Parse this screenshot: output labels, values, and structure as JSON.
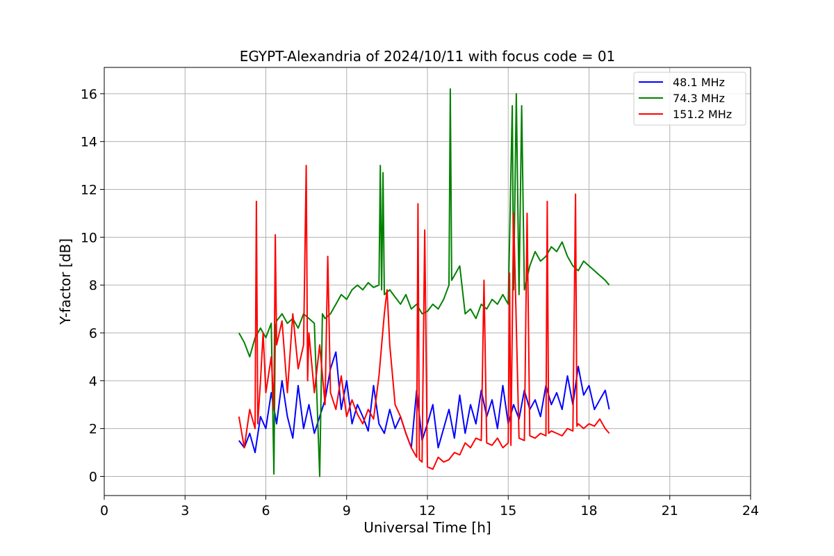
{
  "chart_data": {
    "type": "line",
    "title": "EGYPT-Alexandria of 2024/10/11 with focus code = 01",
    "xlabel": "Universal Time [h]",
    "ylabel": "Y-factor [dB]",
    "xlim": [
      0,
      24
    ],
    "ylim": [
      -0.8,
      17.1
    ],
    "xticks": [
      0,
      3,
      6,
      9,
      12,
      15,
      18,
      21,
      24
    ],
    "yticks": [
      0,
      2,
      4,
      6,
      8,
      10,
      12,
      14,
      16
    ],
    "grid": true,
    "legend_position": "top-right",
    "series": [
      {
        "name": "  48.1 MHz",
        "color": "#0000ff",
        "x": [
          5.0,
          5.2,
          5.4,
          5.6,
          5.8,
          6.0,
          6.2,
          6.4,
          6.6,
          6.8,
          7.0,
          7.2,
          7.4,
          7.6,
          7.8,
          8.0,
          8.2,
          8.4,
          8.6,
          8.8,
          9.0,
          9.2,
          9.4,
          9.6,
          9.8,
          10.0,
          10.2,
          10.4,
          10.6,
          10.8,
          11.0,
          11.2,
          11.4,
          11.6,
          11.8,
          12.0,
          12.2,
          12.4,
          12.6,
          12.8,
          13.0,
          13.2,
          13.4,
          13.6,
          13.8,
          14.0,
          14.2,
          14.4,
          14.6,
          14.8,
          15.0,
          15.2,
          15.4,
          15.6,
          15.8,
          16.0,
          16.2,
          16.4,
          16.6,
          16.8,
          17.0,
          17.2,
          17.4,
          17.6,
          17.8,
          18.0,
          18.2,
          18.4,
          18.6,
          18.75
        ],
        "y": [
          1.5,
          1.2,
          1.8,
          1.0,
          2.5,
          2.0,
          3.5,
          2.2,
          4.0,
          2.5,
          1.6,
          3.8,
          2.0,
          3.0,
          1.8,
          2.5,
          3.2,
          4.5,
          5.2,
          2.8,
          4.0,
          2.2,
          3.0,
          2.5,
          1.9,
          3.8,
          2.2,
          1.8,
          2.8,
          2.0,
          2.5,
          1.8,
          1.2,
          3.6,
          1.5,
          2.2,
          3.0,
          1.2,
          2.0,
          2.8,
          1.6,
          3.4,
          1.8,
          3.0,
          2.2,
          3.6,
          2.5,
          3.2,
          2.0,
          3.8,
          2.2,
          3.0,
          2.4,
          3.6,
          2.8,
          3.2,
          2.5,
          3.8,
          3.0,
          3.5,
          2.8,
          4.2,
          3.0,
          4.6,
          3.4,
          3.8,
          2.8,
          3.2,
          3.6,
          2.8
        ]
      },
      {
        "name": "  74.3 MHz",
        "color": "#008000",
        "x": [
          5.0,
          5.2,
          5.4,
          5.6,
          5.8,
          6.0,
          6.2,
          6.3,
          6.35,
          6.4,
          6.6,
          6.8,
          7.0,
          7.2,
          7.4,
          7.6,
          7.8,
          8.0,
          8.1,
          8.2,
          8.4,
          8.6,
          8.8,
          9.0,
          9.2,
          9.4,
          9.6,
          9.8,
          10.0,
          10.2,
          10.25,
          10.3,
          10.35,
          10.4,
          10.6,
          10.8,
          11.0,
          11.2,
          11.4,
          11.6,
          11.8,
          12.0,
          12.2,
          12.4,
          12.6,
          12.8,
          12.85,
          12.9,
          13.0,
          13.2,
          13.4,
          13.6,
          13.8,
          14.0,
          14.2,
          14.4,
          14.6,
          14.8,
          15.0,
          15.15,
          15.2,
          15.3,
          15.4,
          15.5,
          15.6,
          15.8,
          16.0,
          16.2,
          16.4,
          16.6,
          16.8,
          17.0,
          17.2,
          17.4,
          17.6,
          17.8,
          18.0,
          18.2,
          18.4,
          18.6,
          18.75
        ],
        "y": [
          6.0,
          5.6,
          5.0,
          5.8,
          6.2,
          5.8,
          6.4,
          0.1,
          6.2,
          6.5,
          6.8,
          6.4,
          6.6,
          6.2,
          6.8,
          6.6,
          6.4,
          0.0,
          6.8,
          6.6,
          6.8,
          7.2,
          7.6,
          7.4,
          7.8,
          8.0,
          7.8,
          8.1,
          7.9,
          8.0,
          13.0,
          7.8,
          12.7,
          7.6,
          7.8,
          7.5,
          7.2,
          7.6,
          7.0,
          7.2,
          6.8,
          6.9,
          7.2,
          7.0,
          7.4,
          8.0,
          16.2,
          8.2,
          8.4,
          8.8,
          6.8,
          7.0,
          6.6,
          7.2,
          7.0,
          7.4,
          7.2,
          7.6,
          7.2,
          15.5,
          7.8,
          16.0,
          7.6,
          15.5,
          7.8,
          8.8,
          9.4,
          9.0,
          9.2,
          9.6,
          9.4,
          9.8,
          9.2,
          8.8,
          8.6,
          9.0,
          8.8,
          8.6,
          8.4,
          8.2,
          8.0
        ]
      },
      {
        "name": "151.2 MHz",
        "color": "#ff0000",
        "x": [
          5.0,
          5.2,
          5.4,
          5.6,
          5.65,
          5.7,
          5.8,
          5.9,
          6.0,
          6.2,
          6.3,
          6.35,
          6.4,
          6.6,
          6.8,
          7.0,
          7.2,
          7.4,
          7.5,
          7.55,
          7.6,
          7.8,
          8.0,
          8.2,
          8.3,
          8.4,
          8.6,
          8.8,
          9.0,
          9.2,
          9.4,
          9.6,
          9.8,
          10.0,
          10.2,
          10.4,
          10.5,
          10.6,
          10.8,
          11.0,
          11.2,
          11.4,
          11.6,
          11.65,
          11.7,
          11.8,
          11.9,
          12.0,
          12.2,
          12.4,
          12.6,
          12.8,
          13.0,
          13.2,
          13.4,
          13.6,
          13.8,
          14.0,
          14.1,
          14.2,
          14.4,
          14.6,
          14.8,
          15.0,
          15.05,
          15.1,
          15.2,
          15.4,
          15.6,
          15.7,
          15.8,
          16.0,
          16.2,
          16.4,
          16.45,
          16.5,
          16.6,
          16.8,
          17.0,
          17.2,
          17.4,
          17.5,
          17.55,
          17.6,
          17.8,
          18.0,
          18.2,
          18.4,
          18.6,
          18.75
        ],
        "y": [
          2.5,
          1.2,
          2.8,
          2.0,
          11.5,
          2.2,
          4.0,
          6.0,
          3.5,
          5.0,
          2.8,
          10.1,
          5.5,
          6.5,
          3.5,
          6.8,
          4.5,
          5.5,
          13.0,
          4.0,
          6.0,
          3.5,
          5.5,
          3.0,
          9.2,
          3.5,
          2.8,
          4.2,
          2.5,
          3.2,
          2.6,
          2.2,
          2.8,
          2.4,
          4.2,
          6.8,
          7.8,
          5.5,
          3.0,
          2.5,
          1.8,
          1.2,
          0.8,
          11.4,
          0.7,
          0.6,
          10.3,
          0.4,
          0.3,
          0.8,
          0.6,
          0.7,
          1.0,
          0.9,
          1.4,
          1.2,
          1.6,
          1.5,
          8.2,
          1.4,
          1.3,
          1.6,
          1.2,
          1.4,
          8.5,
          1.3,
          11.0,
          1.6,
          1.5,
          11.0,
          1.7,
          1.6,
          1.8,
          1.7,
          11.5,
          1.8,
          1.9,
          1.8,
          1.7,
          2.0,
          1.9,
          11.8,
          2.1,
          2.2,
          2.0,
          2.2,
          2.1,
          2.4,
          2.0,
          1.8
        ]
      }
    ]
  }
}
